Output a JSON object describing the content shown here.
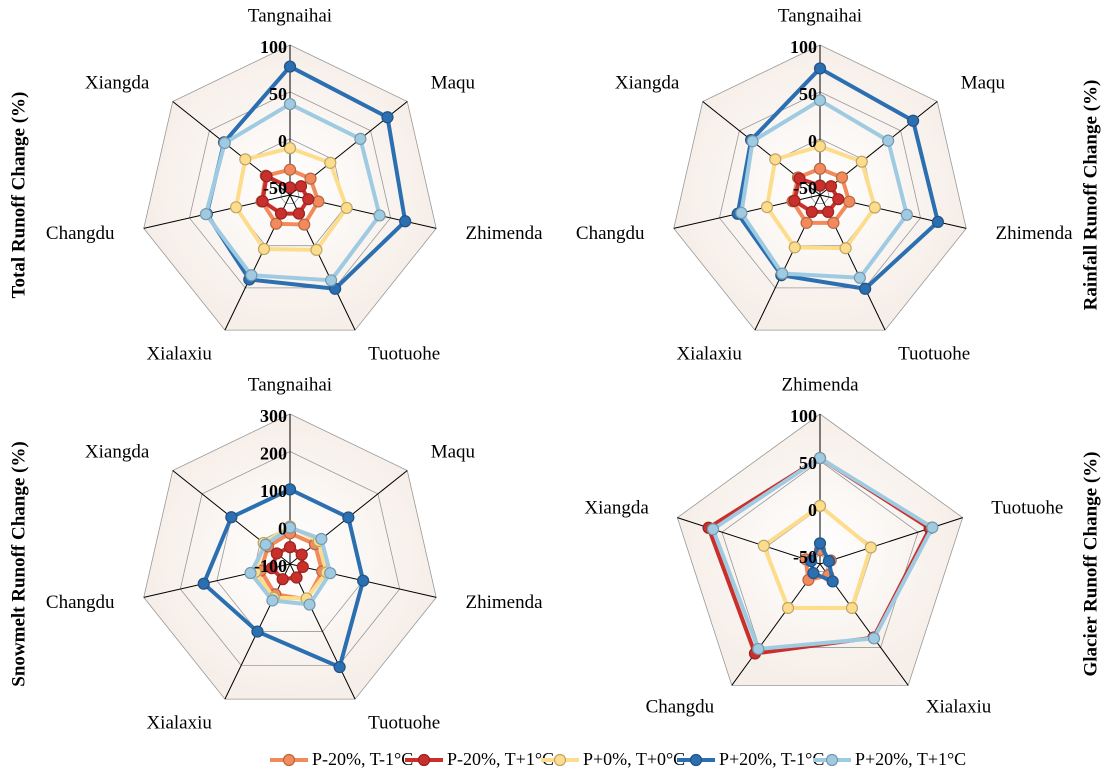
{
  "chart_data": [
    {
      "type": "radar",
      "y_label": "Total Runoff Change (%)",
      "categories": [
        "Tangnaihai",
        "Maqu",
        "Zhimenda",
        "Tuotuohe",
        "Xialaxiu",
        "Changdu",
        "Xiangda"
      ],
      "rlim": [
        -60,
        100
      ],
      "rticks": [
        -50,
        0,
        50,
        100
      ],
      "series": [
        {
          "name": "P-20%, T-1°C",
          "color": "#f28a5b",
          "values": [
            -33,
            -32,
            -29,
            -25,
            -26,
            -29,
            -27
          ]
        },
        {
          "name": "P-20%, T+1°C",
          "color": "#c9302c",
          "values": [
            -52,
            -45,
            -40,
            -38,
            -38,
            -30,
            -28
          ]
        },
        {
          "name": "P+0%, T+0°C",
          "color": "#fddc8c",
          "values": [
            -10,
            -5,
            2,
            5,
            4,
            -1,
            1
          ]
        },
        {
          "name": "P+20%, T-1°C",
          "color": "#2b6fb1",
          "values": [
            77,
            73,
            66,
            51,
            40,
            31,
            30
          ]
        },
        {
          "name": "P+20%, T+1°C",
          "color": "#9fcbe2",
          "values": [
            37,
            36,
            38,
            41,
            35,
            32,
            29
          ]
        }
      ]
    },
    {
      "type": "radar",
      "y_label": "Rainfall Runoff Change (%)",
      "categories": [
        "Tangnaihai",
        "Maqu",
        "Zhimenda",
        "Tuotuohe",
        "Xialaxiu",
        "Changdu",
        "Xiangda"
      ],
      "rlim": [
        -60,
        100
      ],
      "rticks": [
        -50,
        0,
        50,
        100
      ],
      "series": [
        {
          "name": "P-20%, T-1°C",
          "color": "#f28a5b",
          "values": [
            -32,
            -30,
            -28,
            -27,
            -27,
            -30,
            -30
          ]
        },
        {
          "name": "P-20%, T+1°C",
          "color": "#c9302c",
          "values": [
            -50,
            -45,
            -40,
            -40,
            -40,
            -32,
            -32
          ]
        },
        {
          "name": "P+0%, T+0°C",
          "color": "#fddc8c",
          "values": [
            -8,
            -3,
            0,
            3,
            2,
            -2,
            1
          ]
        },
        {
          "name": "P+20%, T-1°C",
          "color": "#2b6fb1",
          "values": [
            75,
            67,
            69,
            51,
            35,
            30,
            34
          ]
        },
        {
          "name": "P+20%, T+1°C",
          "color": "#9fcbe2",
          "values": [
            41,
            33,
            35,
            38,
            33,
            26,
            32
          ]
        }
      ]
    },
    {
      "type": "radar",
      "y_label": "Snowmelt Runoff Change (%)",
      "categories": [
        "Tangnaihai",
        "Maqu",
        "Zhimenda",
        "Tuotuohe",
        "Xialaxiu",
        "Changdu",
        "Xiangda"
      ],
      "rlim": [
        -100,
        300
      ],
      "rticks": [
        -100,
        0,
        100,
        200,
        300
      ],
      "series": [
        {
          "name": "P-20%, T-1°C",
          "color": "#f28a5b",
          "values": [
            -18,
            -15,
            -12,
            5,
            -10,
            -20,
            -25
          ]
        },
        {
          "name": "P-20%, T+1°C",
          "color": "#c9302c",
          "values": [
            -55,
            -60,
            -65,
            -60,
            -55,
            -50,
            -55
          ]
        },
        {
          "name": "P+0%, T+0°C",
          "color": "#fddc8c",
          "values": [
            0,
            -2,
            0,
            2,
            0,
            -5,
            -10
          ]
        },
        {
          "name": "P+20%, T-1°C",
          "color": "#2b6fb1",
          "values": [
            99,
            99,
            100,
            205,
            100,
            136,
            100
          ]
        },
        {
          "name": "P+20%, T+1°C",
          "color": "#9fcbe2",
          "values": [
            -3,
            7,
            10,
            20,
            8,
            8,
            -17
          ]
        }
      ]
    },
    {
      "type": "radar",
      "y_label": "Glacier Runoff Change (%)",
      "categories": [
        "Zhimenda",
        "Tuotuohe",
        "Xialaxiu",
        "Changdu",
        "Xiangda"
      ],
      "rlim": [
        -60,
        100
      ],
      "rticks": [
        -50,
        0,
        50,
        100
      ],
      "series": [
        {
          "name": "P-20%, T-1°C",
          "color": "#f28a5b",
          "values": [
            -45,
            -48,
            -45,
            -39,
            -44
          ]
        },
        {
          "name": "P-20%, T+1°C",
          "color": "#c9302c",
          "values": [
            53,
            63,
            37,
            58,
            65
          ]
        },
        {
          "name": "P+0%, T+0°C",
          "color": "#fddc8c",
          "values": [
            2,
            -3,
            -2,
            -2,
            3
          ]
        },
        {
          "name": "P+20%, T-1°C",
          "color": "#2b6fb1",
          "values": [
            -38,
            -50,
            -37,
            -48,
            -50
          ]
        },
        {
          "name": "P+20%, T+1°C",
          "color": "#9fcbe2",
          "values": [
            53,
            66,
            38,
            52,
            60
          ]
        }
      ]
    }
  ]
}
